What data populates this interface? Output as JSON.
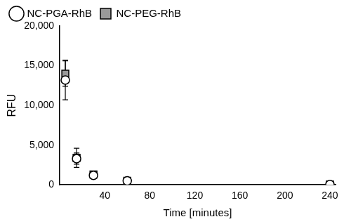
{
  "chart_data": {
    "type": "scatter",
    "x_label": "Time [minutes]",
    "y_label": "RFU",
    "x": [
      5,
      15,
      30,
      60,
      240
    ],
    "series": [
      {
        "name": "NC-PGA-RhB",
        "color": "#000000",
        "marker": "open_circle",
        "values": [
          13200,
          3300,
          1200,
          500,
          50
        ],
        "errors": [
          2500,
          700,
          300,
          150,
          30
        ]
      },
      {
        "name": "NC-PEG-RhB",
        "color": "#999999",
        "marker": "square",
        "values": [
          14000,
          3400,
          1300,
          500,
          50
        ],
        "errors": [
          1600,
          1200,
          300,
          200,
          30
        ]
      }
    ],
    "xlim": [
      0,
      245
    ],
    "xticks": [
      40,
      80,
      120,
      160,
      200,
      240
    ],
    "ylim": [
      0,
      20000
    ],
    "yticks": [
      0,
      {
        "value": 5000,
        "label": "5,000"
      },
      {
        "value": 10000,
        "label": "10,000"
      },
      {
        "value": 15000,
        "label": "15,000"
      },
      {
        "value": 20000,
        "label": "20,000"
      }
    ],
    "grid": false,
    "legend": "top"
  }
}
